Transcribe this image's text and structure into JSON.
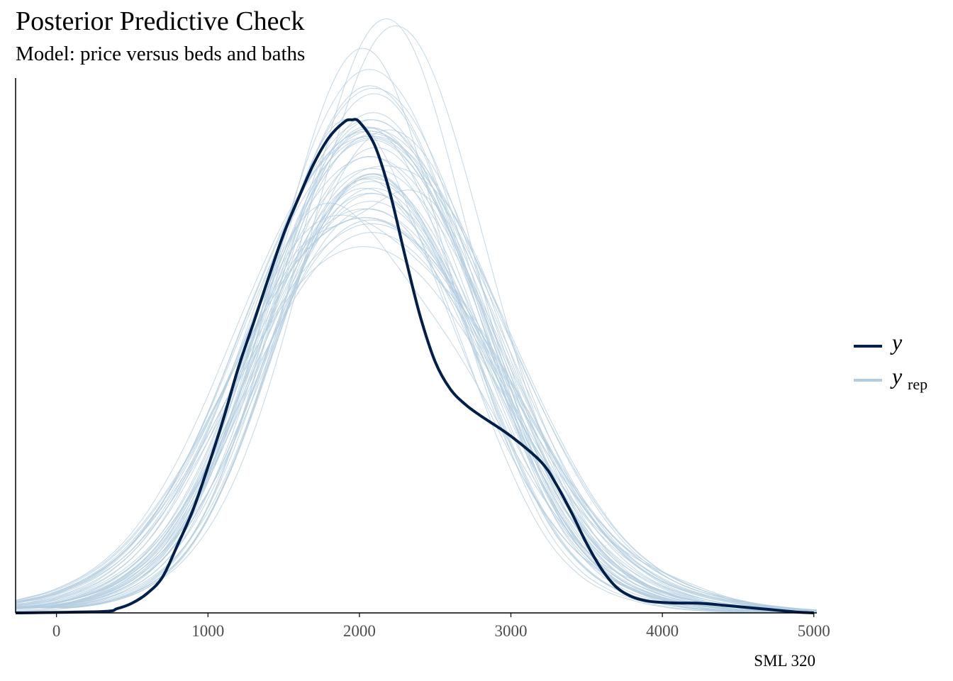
{
  "chart_data": {
    "type": "line",
    "title": "Posterior Predictive Check",
    "subtitle": "Model: price versus beds and baths",
    "caption": "SML 320",
    "xlabel": "",
    "ylabel": "",
    "xlim": [
      -270,
      5020
    ],
    "ylim": [
      0,
      0.00062
    ],
    "xticks": [
      0,
      1000,
      2000,
      3000,
      4000,
      5000
    ],
    "xtick_labels": [
      "0",
      "1000",
      "2000",
      "3000",
      "4000",
      "5000"
    ],
    "grid": false,
    "legend_position": "right",
    "legend": [
      {
        "label": "y",
        "subscript": "",
        "color": "#011f4b"
      },
      {
        "label": "y",
        "subscript": "rep",
        "color": "#b3cde0"
      }
    ],
    "series": [
      {
        "name": "y",
        "color": "#011f4b",
        "x": [
          300,
          400,
          500,
          600,
          700,
          800,
          900,
          1000,
          1100,
          1200,
          1300,
          1400,
          1500,
          1600,
          1700,
          1800,
          1900,
          1950,
          2000,
          2100,
          2200,
          2300,
          2400,
          2500,
          2600,
          2700,
          2800,
          3000,
          3200,
          3300,
          3400,
          3500,
          3600,
          3700,
          3800,
          3900,
          4000,
          4100,
          4200,
          4300,
          4400,
          4500,
          4600,
          4700,
          4800,
          4900,
          5000
        ],
        "y": [
          1.6e-06,
          4.9e-06,
          1.14e-05,
          2.28e-05,
          4.15e-05,
          7.9e-05,
          0.0001188,
          0.0001692,
          0.0002236,
          0.0002838,
          0.0003358,
          0.0003885,
          0.0004395,
          0.0004818,
          0.0005212,
          0.0005513,
          0.0005691,
          0.0005716,
          0.000569,
          0.0005423,
          0.000488,
          0.0004147,
          0.0003447,
          0.0002912,
          0.0002594,
          0.0002415,
          0.0002285,
          0.0002049,
          0.000175,
          0.0001488,
          0.0001163,
          8.05e-05,
          5.04e-05,
          2.93e-05,
          1.87e-05,
          1.38e-05,
          1.21e-05,
          1.14e-05,
          1.14e-05,
          1.06e-05,
          8.9e-06,
          7.3e-06,
          5.7e-06,
          4.1e-06,
          2.4e-06,
          8e-07,
          0.0
        ]
      }
    ],
    "replicates": {
      "name": "y_rep",
      "color": "#b3cde0",
      "count": 50,
      "x": [
        -270,
        -100,
        0,
        100,
        200,
        300,
        400,
        500,
        600,
        700,
        800,
        900,
        1000,
        1100,
        1200,
        1300,
        1400,
        1500,
        1600,
        1700,
        1800,
        1900,
        2000,
        2100,
        2200,
        2300,
        2400,
        2500,
        2600,
        2700,
        2800,
        2900,
        3000,
        3100,
        3200,
        3300,
        3400,
        3500,
        3600,
        3700,
        3800,
        3900,
        4000,
        4100,
        4200,
        4300,
        4400,
        4500,
        4600,
        4700,
        4800,
        4900,
        5020
      ],
      "mean_y": [
        6e-06,
        9e-06,
        1.2e-05,
        1.6e-05,
        2.1e-05,
        2.8e-05,
        3.7e-05,
        4.9e-05,
        6.4e-05,
        8.4e-05,
        0.000109,
        0.000139,
        0.000173,
        0.000212,
        0.000255,
        0.0003,
        0.000344,
        0.000386,
        0.000424,
        0.000456,
        0.000481,
        0.000499,
        0.000509,
        0.000511,
        0.000505,
        0.000491,
        0.00047,
        0.000442,
        0.000409,
        0.000372,
        0.000333,
        0.000293,
        0.000253,
        0.000214,
        0.000178,
        0.000145,
        0.000116,
        9.1e-05,
        7.1e-05,
        5.5e-05,
        4.2e-05,
        3.2e-05,
        2.5e-05,
        1.9e-05,
        1.5e-05,
        1.1e-05,
        8e-06,
        6e-06,
        4e-06,
        3e-06,
        2e-06,
        1e-06,
        1e-06
      ],
      "series": [
        [
          4e-06,
          6e-06,
          9e-06,
          1.3e-05,
          1.8e-05,
          2.5e-05,
          3.4e-05,
          4.6e-05,
          6.1e-05,
          8.1e-05,
          0.000106,
          0.000137,
          0.000174,
          0.000217,
          0.000266,
          0.00032,
          0.000377,
          0.000433,
          0.000485,
          0.000528,
          0.000558,
          0.000572,
          0.000569,
          0.00055,
          0.000519,
          0.000479,
          0.000434,
          0.000387,
          0.000341,
          0.000297,
          0.000256,
          0.000218,
          0.000183,
          0.000151,
          0.000123,
          9.8e-05,
          7.7e-05,
          6e-05,
          4.6e-05,
          3.5e-05,
          2.7e-05,
          2.1e-05,
          1.6e-05,
          1.2e-05,
          9e-06,
          7e-06,
          5e-06,
          4e-06,
          3e-06,
          2e-06,
          1e-06,
          1e-06,
          0.0
        ],
        [
          5e-06,
          8e-06,
          1.1e-05,
          1.5e-05,
          2e-05,
          2.6e-05,
          3.4e-05,
          4.4e-05,
          5.6e-05,
          7.1e-05,
          9e-05,
          0.000113,
          0.00014,
          0.000172,
          0.000209,
          0.00025,
          0.000295,
          0.000342,
          0.00039,
          0.000436,
          0.000478,
          0.000513,
          0.000539,
          0.000555,
          0.00056,
          0.000554,
          0.000538,
          0.000513,
          0.000479,
          0.000439,
          0.000395,
          0.000348,
          0.0003,
          0.000253,
          0.000209,
          0.000169,
          0.000134,
          0.000104,
          7.9e-05,
          5.9e-05,
          4.4e-05,
          3.3e-05,
          2.5e-05,
          1.9e-05,
          1.4e-05,
          1.1e-05,
          8e-06,
          6e-06,
          4e-06,
          3e-06,
          2e-06,
          1e-06,
          1e-06
        ],
        [
          1.2e-05,
          1.6e-05,
          2.1e-05,
          2.7e-05,
          3.5e-05,
          4.5e-05,
          5.8e-05,
          7.4e-05,
          9.4e-05,
          0.000118,
          0.000146,
          0.000178,
          0.000215,
          0.000256,
          0.000299,
          0.000343,
          0.000385,
          0.000422,
          0.000451,
          0.000469,
          0.000475,
          0.00047,
          0.000456,
          0.000437,
          0.000414,
          0.00039,
          0.000366,
          0.000341,
          0.000315,
          0.000287,
          0.000257,
          0.000226,
          0.000195,
          0.000165,
          0.000137,
          0.000112,
          9e-05,
          7.2e-05,
          5.8e-05,
          4.7e-05,
          3.9e-05,
          3.2e-05,
          2.6e-05,
          2.1e-05,
          1.6e-05,
          1.2e-05,
          9e-06,
          6e-06,
          4e-06,
          3e-06,
          2e-06,
          1e-06,
          1e-06
        ],
        [
          3e-06,
          4e-06,
          6e-06,
          8e-06,
          1.1e-05,
          1.5e-05,
          2.1e-05,
          2.8e-05,
          3.8e-05,
          5.1e-05,
          6.8e-05,
          9e-05,
          0.000117,
          0.000151,
          0.000192,
          0.00024,
          0.000295,
          0.000356,
          0.000421,
          0.000488,
          0.000553,
          0.00061,
          0.000655,
          0.000682,
          0.000688,
          0.000672,
          0.000636,
          0.000583,
          0.00052,
          0.000452,
          0.000384,
          0.000319,
          0.00026,
          0.000208,
          0.000163,
          0.000126,
          9.6e-05,
          7.2e-05,
          5.3e-05,
          3.8e-05,
          2.7e-05,
          1.9e-05,
          1.3e-05,
          9e-06,
          6e-06,
          4e-06,
          3e-06,
          2e-06,
          1e-06,
          1e-06,
          0.0,
          0.0,
          0.0
        ],
        [
          9e-06,
          1.2e-05,
          1.6e-05,
          2.1e-05,
          2.7e-05,
          3.5e-05,
          4.5e-05,
          5.8e-05,
          7.4e-05,
          9.4e-05,
          0.000119,
          0.00015,
          0.000187,
          0.000229,
          0.000274,
          0.00032,
          0.000362,
          0.000397,
          0.000422,
          0.000437,
          0.000446,
          0.000453,
          0.000462,
          0.000473,
          0.000484,
          0.00049,
          0.000487,
          0.000473,
          0.000447,
          0.000411,
          0.000368,
          0.000321,
          0.000274,
          0.000229,
          0.000188,
          0.000152,
          0.000121,
          9.6e-05,
          7.6e-05,
          6e-05,
          4.8e-05,
          3.8e-05,
          3e-05,
          2.3e-05,
          1.8e-05,
          1.3e-05,
          1e-05,
          7e-06,
          5e-06,
          3e-06,
          2e-06,
          1e-06,
          1e-06
        ],
        [
          1e-05,
          1.4e-05,
          1.8e-05,
          2.4e-05,
          3.1e-05,
          4.1e-05,
          5.4e-05,
          7e-05,
          9e-05,
          0.000114,
          0.000142,
          0.000173,
          0.000206,
          0.00024,
          0.000275,
          0.00031,
          0.000345,
          0.00038,
          0.000413,
          0.000443,
          0.000467,
          0.000484,
          0.000492,
          0.00049,
          0.00048,
          0.000462,
          0.000438,
          0.00041,
          0.000379,
          0.000347,
          0.000314,
          0.000281,
          0.000248,
          0.000216,
          0.000186,
          0.000158,
          0.000133,
          0.000111,
          9.3e-05,
          7.8e-05,
          6.6e-05,
          5.6e-05,
          4.7e-05,
          3.9e-05,
          3.1e-05,
          2.4e-05,
          1.8e-05,
          1.3e-05,
          9e-06,
          6e-06,
          4e-06,
          2e-06,
          1e-06
        ],
        [
          2e-06,
          3e-06,
          4e-06,
          6e-06,
          8e-06,
          1.1e-05,
          1.5e-05,
          2.1e-05,
          2.9e-05,
          4e-05,
          5.4e-05,
          7.3e-05,
          9.7e-05,
          0.000127,
          0.000164,
          0.000209,
          0.000261,
          0.00032,
          0.000385,
          0.000452,
          0.000518,
          0.000578,
          0.000627,
          0.000662,
          0.000679,
          0.000677,
          0.000657,
          0.00062,
          0.00057,
          0.000511,
          0.000447,
          0.000382,
          0.000319,
          0.000261,
          0.000209,
          0.000164,
          0.000127,
          9.7e-05,
          7.3e-05,
          5.4e-05,
          4e-05,
          2.9e-05,
          2.1e-05,
          1.5e-05,
          1.1e-05,
          8e-06,
          6e-06,
          4e-06,
          3e-06,
          2e-06,
          1e-06,
          1e-06,
          0.0
        ],
        [
          1.3e-05,
          1.8e-05,
          2.4e-05,
          3.1e-05,
          4e-05,
          5.1e-05,
          6.4e-05,
          8e-05,
          0.0001,
          0.000124,
          0.000152,
          0.000184,
          0.00022,
          0.000259,
          0.000299,
          0.000339,
          0.000376,
          0.000408,
          0.000433,
          0.00045,
          0.000459,
          0.000461,
          0.000457,
          0.000448,
          0.000436,
          0.000422,
          0.000406,
          0.000389,
          0.00037,
          0.000349,
          0.000325,
          0.000298,
          0.000268,
          0.000237,
          0.000206,
          0.000176,
          0.000149,
          0.000124,
          0.000103,
          8.5e-05,
          7e-05,
          5.8e-05,
          4.8e-05,
          4e-05,
          3.3e-05,
          2.6e-05,
          2e-05,
          1.5e-05,
          1.1e-05,
          8e-06,
          5e-06,
          3e-06,
          2e-06
        ],
        [
          5e-06,
          7e-06,
          1e-05,
          1.3e-05,
          1.8e-05,
          2.4e-05,
          3.2e-05,
          4.3e-05,
          5.7e-05,
          7.5e-05,
          9.8e-05,
          0.000126,
          0.000161,
          0.000203,
          0.000252,
          0.000308,
          0.000369,
          0.000433,
          0.000497,
          0.000556,
          0.000605,
          0.000639,
          0.000654,
          0.000648,
          0.000621,
          0.000577,
          0.000521,
          0.000458,
          0.000394,
          0.000333,
          0.000277,
          0.000228,
          0.000186,
          0.00015,
          0.000121,
          9.7e-05,
          7.7e-05,
          6.1e-05,
          4.8e-05,
          3.7e-05,
          2.9e-05,
          2.2e-05,
          1.7e-05,
          1.3e-05,
          1e-05,
          7e-06,
          5e-06,
          4e-06,
          3e-06,
          2e-06,
          1e-06,
          1e-06,
          0.0
        ],
        [
          6e-06,
          9e-06,
          1.2e-05,
          1.7e-05,
          2.3e-05,
          3.1e-05,
          4.1e-05,
          5.4e-05,
          7e-05,
          9e-05,
          0.000114,
          0.000142,
          0.000174,
          0.00021,
          0.00025,
          0.000292,
          0.000335,
          0.000377,
          0.000416,
          0.00045,
          0.000478,
          0.000498,
          0.000511,
          0.000517,
          0.000518,
          0.000514,
          0.000505,
          0.00049,
          0.000468,
          0.000439,
          0.000402,
          0.00036,
          0.000315,
          0.00027,
          0.000226,
          0.000186,
          0.000151,
          0.000121,
          9.6e-05,
          7.5e-05,
          5.8e-05,
          4.5e-05,
          3.4e-05,
          2.6e-05,
          2e-05,
          1.5e-05,
          1.1e-05,
          8e-06,
          6e-06,
          4e-06,
          3e-06,
          2e-06,
          1e-06
        ]
      ]
    }
  }
}
